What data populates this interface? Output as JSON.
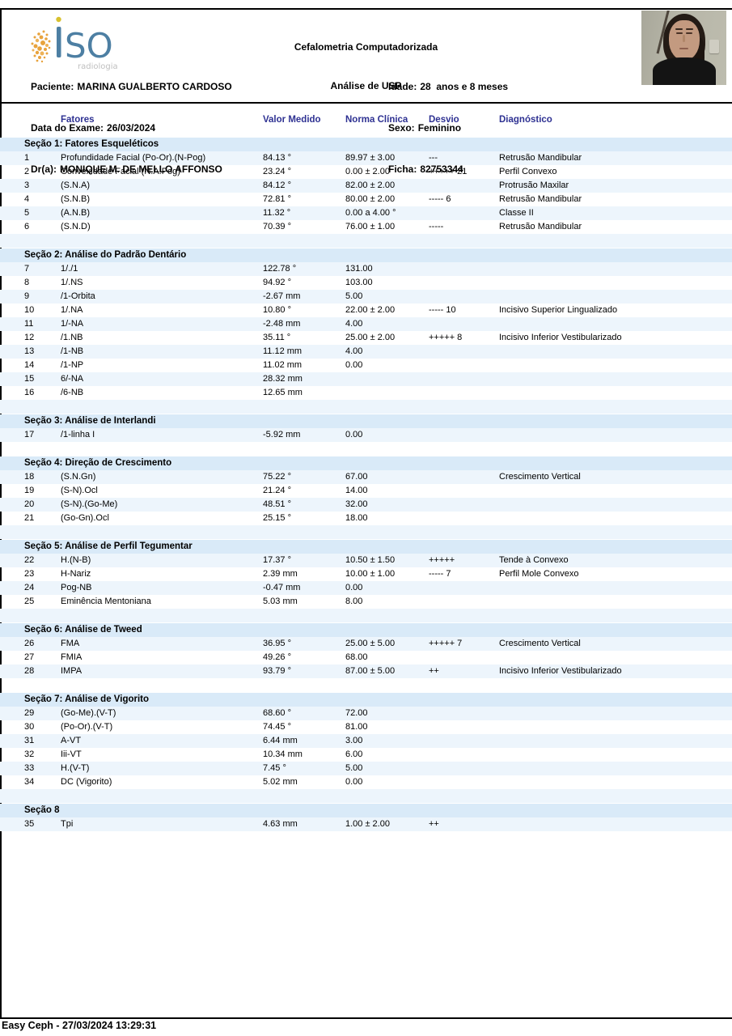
{
  "page": {
    "title_line1": "Cefalometria Computadorizada",
    "title_line2": "Análise de USP"
  },
  "logo": {
    "text": "SO",
    "name": "iSO",
    "subtext": "radiologia",
    "blue": "#4d7fa3",
    "amber": "#e8a33d",
    "gray": "#bfbfbf"
  },
  "patient_info": {
    "left": [
      {
        "label": "Paciente:",
        "value": "MARINA GUALBERTO CARDOSO"
      },
      {
        "label": "Data do Exame:",
        "value": "26/03/2024"
      },
      {
        "label": "Dr(a):",
        "value": "MONIQUE M. DE MELLO AFFONSO"
      }
    ],
    "right": [
      {
        "label": "Idade:",
        "value": "28  anos e 8 meses"
      },
      {
        "label": "Sexo:",
        "value": "Feminino"
      },
      {
        "label": "Ficha:",
        "value": "82753344"
      }
    ]
  },
  "table": {
    "columns": {
      "factors": "Fatores",
      "measured": "Valor Medido",
      "norm": "Norma Clínica",
      "deviation": "Desvio",
      "diagnosis": "Diagnóstico"
    },
    "colors": {
      "header_text": "#2e3192",
      "section_band": "#d9eaf8",
      "row_stripe": "#edf5fc"
    },
    "sections": [
      {
        "title": "Seção 1: Fatores Esqueléticos",
        "rows": [
          {
            "n": "1",
            "factor": "Profundidade Facial (Po-Or).(N-Pog)",
            "value": "84.13 °",
            "norm": "89.97 ± 3.00",
            "deviation": "---",
            "diagnosis": "Retrusão Mandibular"
          },
          {
            "n": "2",
            "factor": "Convexidade Facial (N.A.Pog)",
            "value": "23.24 °",
            "norm": "0.00 ± 2.00",
            "deviation": "+++++ 21",
            "diagnosis": "Perfil Convexo"
          },
          {
            "n": "3",
            "factor": "(S.N.A)",
            "value": "84.12 °",
            "norm": "82.00 ± 2.00",
            "deviation": "",
            "diagnosis": "Protrusão Maxilar"
          },
          {
            "n": "4",
            "factor": "(S.N.B)",
            "value": "72.81 °",
            "norm": "80.00 ± 2.00",
            "deviation": "----- 6",
            "diagnosis": "Retrusão Mandibular"
          },
          {
            "n": "5",
            "factor": "(A.N.B)",
            "value": "11.32 °",
            "norm": "0.00 a 4.00 °",
            "deviation": "",
            "diagnosis": "Classe II"
          },
          {
            "n": "6",
            "factor": "(S.N.D)",
            "value": "70.39 °",
            "norm": "76.00 ± 1.00",
            "deviation": "-----",
            "diagnosis": "Retrusão Mandibular"
          }
        ]
      },
      {
        "title": "Seção 2: Análise do Padrão Dentário",
        "rows": [
          {
            "n": "7",
            "factor": "1/./1",
            "value": "122.78 °",
            "norm": "131.00",
            "deviation": "",
            "diagnosis": ""
          },
          {
            "n": "8",
            "factor": "1/.NS",
            "value": "94.92 °",
            "norm": "103.00",
            "deviation": "",
            "diagnosis": ""
          },
          {
            "n": "9",
            "factor": "/1-Orbita",
            "value": "-2.67 mm",
            "norm": "5.00",
            "deviation": "",
            "diagnosis": ""
          },
          {
            "n": "10",
            "factor": "1/.NA",
            "value": "10.80 °",
            "norm": "22.00 ± 2.00",
            "deviation": "----- 10",
            "diagnosis": "Incisivo Superior Lingualizado"
          },
          {
            "n": "11",
            "factor": "1/-NA",
            "value": "-2.48 mm",
            "norm": "4.00",
            "deviation": "",
            "diagnosis": ""
          },
          {
            "n": "12",
            "factor": "/1.NB",
            "value": "35.11 °",
            "norm": "25.00 ± 2.00",
            "deviation": "+++++ 8",
            "diagnosis": "Incisivo Inferior Vestibularizado"
          },
          {
            "n": "13",
            "factor": "/1-NB",
            "value": "11.12 mm",
            "norm": "4.00",
            "deviation": "",
            "diagnosis": ""
          },
          {
            "n": "14",
            "factor": "/1-NP",
            "value": "11.02 mm",
            "norm": "0.00",
            "deviation": "",
            "diagnosis": ""
          },
          {
            "n": "15",
            "factor": "6/-NA",
            "value": "28.32 mm",
            "norm": "",
            "deviation": "",
            "diagnosis": ""
          },
          {
            "n": "16",
            "factor": "/6-NB",
            "value": "12.65 mm",
            "norm": "",
            "deviation": "",
            "diagnosis": ""
          }
        ]
      },
      {
        "title": "Seção 3: Análise de Interlandi",
        "rows": [
          {
            "n": "17",
            "factor": "/1-linha I",
            "value": "-5.92 mm",
            "norm": "0.00",
            "deviation": "",
            "diagnosis": ""
          }
        ]
      },
      {
        "title": "Seção 4: Direção de Crescimento",
        "rows": [
          {
            "n": "18",
            "factor": "(S.N.Gn)",
            "value": "75.22 °",
            "norm": "67.00",
            "deviation": "",
            "diagnosis": "Crescimento Vertical"
          },
          {
            "n": "19",
            "factor": "(S-N).Ocl",
            "value": "21.24 °",
            "norm": "14.00",
            "deviation": "",
            "diagnosis": ""
          },
          {
            "n": "20",
            "factor": "(S-N).(Go-Me)",
            "value": "48.51 °",
            "norm": "32.00",
            "deviation": "",
            "diagnosis": ""
          },
          {
            "n": "21",
            "factor": "(Go-Gn).Ocl",
            "value": "25.15 °",
            "norm": "18.00",
            "deviation": "",
            "diagnosis": ""
          }
        ]
      },
      {
        "title": "Seção 5: Análise de Perfil Tegumentar",
        "rows": [
          {
            "n": "22",
            "factor": "H.(N-B)",
            "value": "17.37 °",
            "norm": "10.50 ± 1.50",
            "deviation": "+++++",
            "diagnosis": "Tende à Convexo"
          },
          {
            "n": "23",
            "factor": "H-Nariz",
            "value": "2.39 mm",
            "norm": "10.00 ± 1.00",
            "deviation": "----- 7",
            "diagnosis": "Perfil Mole Convexo"
          },
          {
            "n": "24",
            "factor": "Pog-NB",
            "value": "-0.47 mm",
            "norm": "0.00",
            "deviation": "",
            "diagnosis": ""
          },
          {
            "n": "25",
            "factor": "Eminência Mentoniana",
            "value": "5.03 mm",
            "norm": "8.00",
            "deviation": "",
            "diagnosis": ""
          }
        ]
      },
      {
        "title": "Seção 6: Análise de Tweed",
        "rows": [
          {
            "n": "26",
            "factor": "FMA",
            "value": "36.95 °",
            "norm": "25.00 ± 5.00",
            "deviation": "+++++ 7",
            "diagnosis": "Crescimento Vertical"
          },
          {
            "n": "27",
            "factor": "FMIA",
            "value": "49.26 °",
            "norm": "68.00",
            "deviation": "",
            "diagnosis": ""
          },
          {
            "n": "28",
            "factor": "IMPA",
            "value": "93.79 °",
            "norm": "87.00 ± 5.00",
            "deviation": "++",
            "diagnosis": "Incisivo Inferior Vestibularizado"
          }
        ]
      },
      {
        "title": "Seção 7: Análise de Vigorito",
        "rows": [
          {
            "n": "29",
            "factor": "(Go-Me).(V-T)",
            "value": "68.60 °",
            "norm": "72.00",
            "deviation": "",
            "diagnosis": ""
          },
          {
            "n": "30",
            "factor": "(Po-Or).(V-T)",
            "value": "74.45 °",
            "norm": "81.00",
            "deviation": "",
            "diagnosis": ""
          },
          {
            "n": "31",
            "factor": "A-VT",
            "value": "6.44 mm",
            "norm": "3.00",
            "deviation": "",
            "diagnosis": ""
          },
          {
            "n": "32",
            "factor": "Iii-VT",
            "value": "10.34 mm",
            "norm": "6.00",
            "deviation": "",
            "diagnosis": ""
          },
          {
            "n": "33",
            "factor": "H.(V-T)",
            "value": "7.45 °",
            "norm": "5.00",
            "deviation": "",
            "diagnosis": ""
          },
          {
            "n": "34",
            "factor": "DC (Vigorito)",
            "value": "5.02 mm",
            "norm": "0.00",
            "deviation": "",
            "diagnosis": ""
          }
        ]
      },
      {
        "title": "Seção 8",
        "rows": [
          {
            "n": "35",
            "factor": "Tpi",
            "value": "4.63 mm",
            "norm": "1.00 ± 2.00",
            "deviation": "++",
            "diagnosis": ""
          }
        ]
      }
    ]
  },
  "footer": {
    "text": "Easy Ceph - 27/03/2024 13:29:31"
  }
}
